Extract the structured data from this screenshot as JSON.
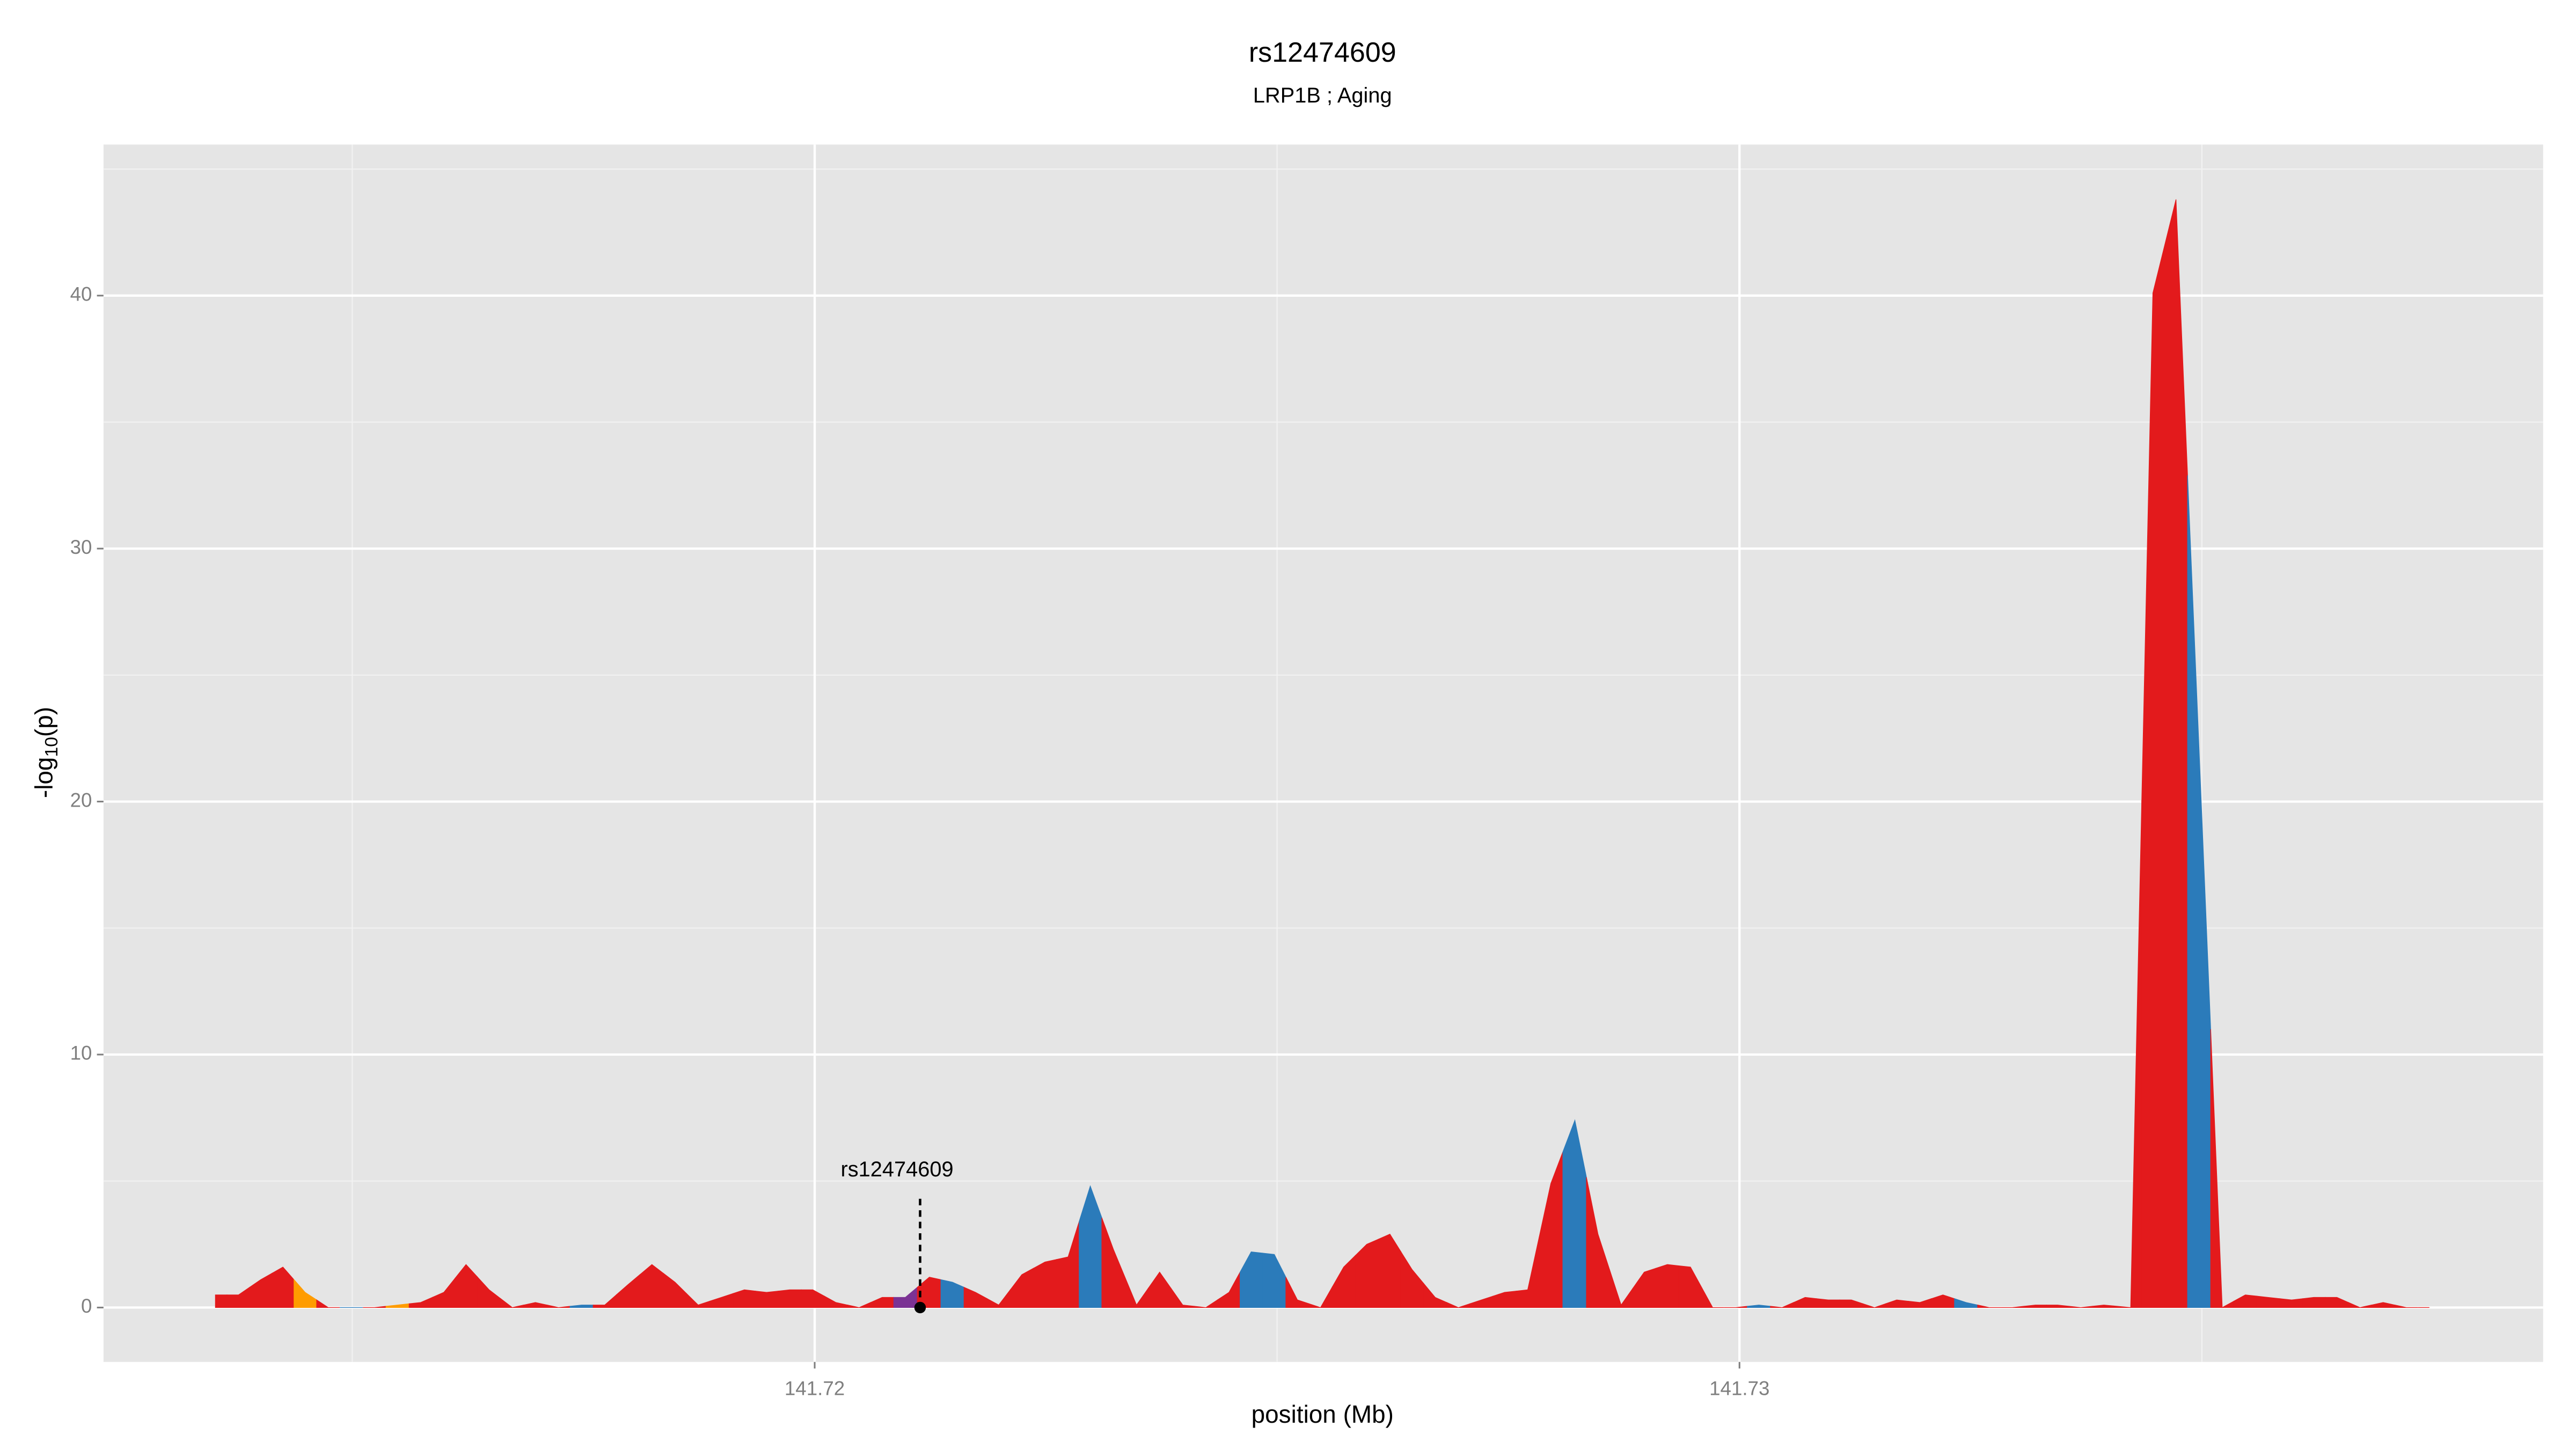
{
  "chart_data": {
    "type": "area",
    "title": "rs12474609",
    "subtitle": "LRP1B ; Aging",
    "xlabel": "position (Mb)",
    "ylabel": "-log10(p)",
    "x": [
      141.71352,
      141.71377,
      141.71401,
      141.71425,
      141.71449,
      141.71474,
      141.71499,
      141.71524,
      141.71549,
      141.71574,
      141.71599,
      141.71623,
      141.71648,
      141.71673,
      141.71698,
      141.71723,
      141.71748,
      141.71773,
      141.71798,
      141.71824,
      141.71849,
      141.71874,
      141.71899,
      141.71924,
      141.71948,
      141.71973,
      141.71998,
      141.72023,
      141.72048,
      141.72073,
      141.72098,
      141.72124,
      141.72149,
      141.72174,
      141.72199,
      141.72224,
      141.72249,
      141.72274,
      141.72298,
      141.72323,
      141.72348,
      141.72373,
      141.72398,
      141.72423,
      141.72448,
      141.72472,
      141.72497,
      141.72522,
      141.72547,
      141.72572,
      141.72597,
      141.72622,
      141.72646,
      141.72671,
      141.72696,
      141.72721,
      141.72746,
      141.72771,
      141.72796,
      141.72822,
      141.72847,
      141.72872,
      141.72897,
      141.72922,
      141.72947,
      141.72971,
      141.72996,
      141.73021,
      141.73046,
      141.73071,
      141.73096,
      141.73121,
      141.73146,
      141.7317,
      141.73195,
      141.7322,
      141.73245,
      141.7327,
      141.73295,
      141.7332,
      141.73344,
      141.73369,
      141.73394,
      141.73423,
      141.73447,
      141.73472,
      141.73497,
      141.73522,
      141.73547,
      141.73572,
      141.73597,
      141.73621,
      141.73646,
      141.73671,
      141.73696,
      141.73721,
      141.73746
    ],
    "values": [
      0.5,
      0.5,
      1.1,
      1.6,
      0.6,
      0,
      0,
      0,
      0.1,
      0.2,
      0.6,
      1.7,
      0.7,
      0,
      0.2,
      0,
      0.1,
      0.1,
      0.9,
      1.7,
      1.0,
      0.1,
      0.4,
      0.7,
      0.6,
      0.7,
      0.7,
      0.2,
      0,
      0.4,
      0.4,
      1.2,
      1.0,
      0.6,
      0.1,
      1.3,
      1.8,
      2.0,
      4.8,
      2.3,
      0.1,
      1.4,
      0.1,
      0,
      0.6,
      2.2,
      2.1,
      0.3,
      0,
      1.6,
      2.5,
      2.9,
      1.5,
      0.4,
      0,
      0.3,
      0.6,
      0.7,
      4.9,
      7.4,
      2.9,
      0.1,
      1.4,
      1.7,
      1.6,
      0,
      0,
      0.1,
      0,
      0.4,
      0.3,
      0.3,
      0,
      0.3,
      0.2,
      0.5,
      0.2,
      0,
      0,
      0.1,
      0.1,
      0,
      0.1,
      0,
      40.1,
      43.8,
      22,
      0,
      0.5,
      0.4,
      0.3,
      0.4,
      0.4,
      0,
      0.2,
      0,
      0
    ],
    "colors": [
      "#e31a1c",
      "#e31a1c",
      "#e31a1c",
      "#e31a1c",
      "#ff9c00",
      "#e31a1c",
      "#2b7bba",
      "#e31a1c",
      "#ff9c00",
      "#e31a1c",
      "#e31a1c",
      "#e31a1c",
      "#e31a1c",
      "#e31a1c",
      "#e31a1c",
      "#e31a1c",
      "#2b7bba",
      "#e31a1c",
      "#e31a1c",
      "#e31a1c",
      "#e31a1c",
      "#e31a1c",
      "#e31a1c",
      "#e31a1c",
      "#e31a1c",
      "#e31a1c",
      "#e31a1c",
      "#e31a1c",
      "#e31a1c",
      "#e31a1c",
      "#7b3294",
      "#e31a1c",
      "#2b7bba",
      "#e31a1c",
      "#e31a1c",
      "#e31a1c",
      "#e31a1c",
      "#e31a1c",
      "#2b7bba",
      "#e31a1c",
      "#e31a1c",
      "#e31a1c",
      "#e31a1c",
      "#e31a1c",
      "#e31a1c",
      "#2b7bba",
      "#2b7bba",
      "#e31a1c",
      "#e31a1c",
      "#e31a1c",
      "#e31a1c",
      "#e31a1c",
      "#e31a1c",
      "#e31a1c",
      "#e31a1c",
      "#e31a1c",
      "#e31a1c",
      "#e31a1c",
      "#e31a1c",
      "#2b7bba",
      "#e31a1c",
      "#e31a1c",
      "#e31a1c",
      "#e31a1c",
      "#e31a1c",
      "#e31a1c",
      "#e31a1c",
      "#2b7bba",
      "#e31a1c",
      "#e31a1c",
      "#e31a1c",
      "#e31a1c",
      "#e31a1c",
      "#e31a1c",
      "#e31a1c",
      "#e31a1c",
      "#2b7bba",
      "#e31a1c",
      "#e31a1c",
      "#e31a1c",
      "#e31a1c",
      "#e31a1c",
      "#e31a1c",
      "#e31a1c",
      "#e31a1c",
      "#e31a1c",
      "#2b7bba",
      "#e31a1c",
      "#e31a1c",
      "#e31a1c",
      "#e31a1c",
      "#e31a1c",
      "#e31a1c",
      "#e31a1c",
      "#e31a1c",
      "#e31a1c",
      "#e31a1c"
    ],
    "highlight": {
      "label": "rs12474609",
      "x": 141.72114,
      "value": 0,
      "label_value": 4.3
    },
    "xlim": [
      141.71231,
      141.73869
    ],
    "ylim": [
      -2.15,
      45.97
    ],
    "xticks": [
      141.72,
      141.73
    ],
    "yticks": [
      0,
      10,
      20,
      30,
      40
    ],
    "x_minor_ticks": [
      141.715,
      141.725,
      141.735
    ],
    "y_minor_ticks": [
      5,
      15,
      25,
      35,
      45
    ],
    "grid": true
  }
}
